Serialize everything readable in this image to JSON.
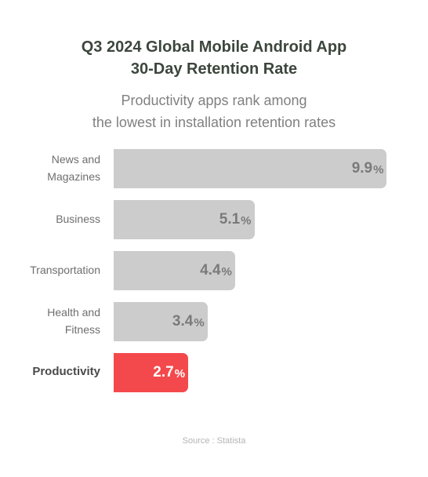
{
  "title_line1": "Q3 2024 Global Mobile Android App",
  "title_line2": "30-Day Retention Rate",
  "subtitle_line1": "Productivity apps rank among",
  "subtitle_line2": "the lowest in installation retention rates",
  "source": "Source : Statista",
  "colors": {
    "default_bar": "#cccccc",
    "highlight_bar": "#f4494c"
  },
  "chart_data": {
    "type": "bar",
    "orientation": "horizontal",
    "categories": [
      [
        "News and",
        "Magazines"
      ],
      [
        "Business"
      ],
      [
        "Transportation"
      ],
      [
        "Health and",
        "Fitness"
      ],
      [
        "Productivity"
      ]
    ],
    "values": [
      9.9,
      5.1,
      4.4,
      3.4,
      2.7
    ],
    "value_unit": "%",
    "highlight_index": 4,
    "xlim": [
      0,
      10
    ],
    "grid": false,
    "legend": "none"
  }
}
